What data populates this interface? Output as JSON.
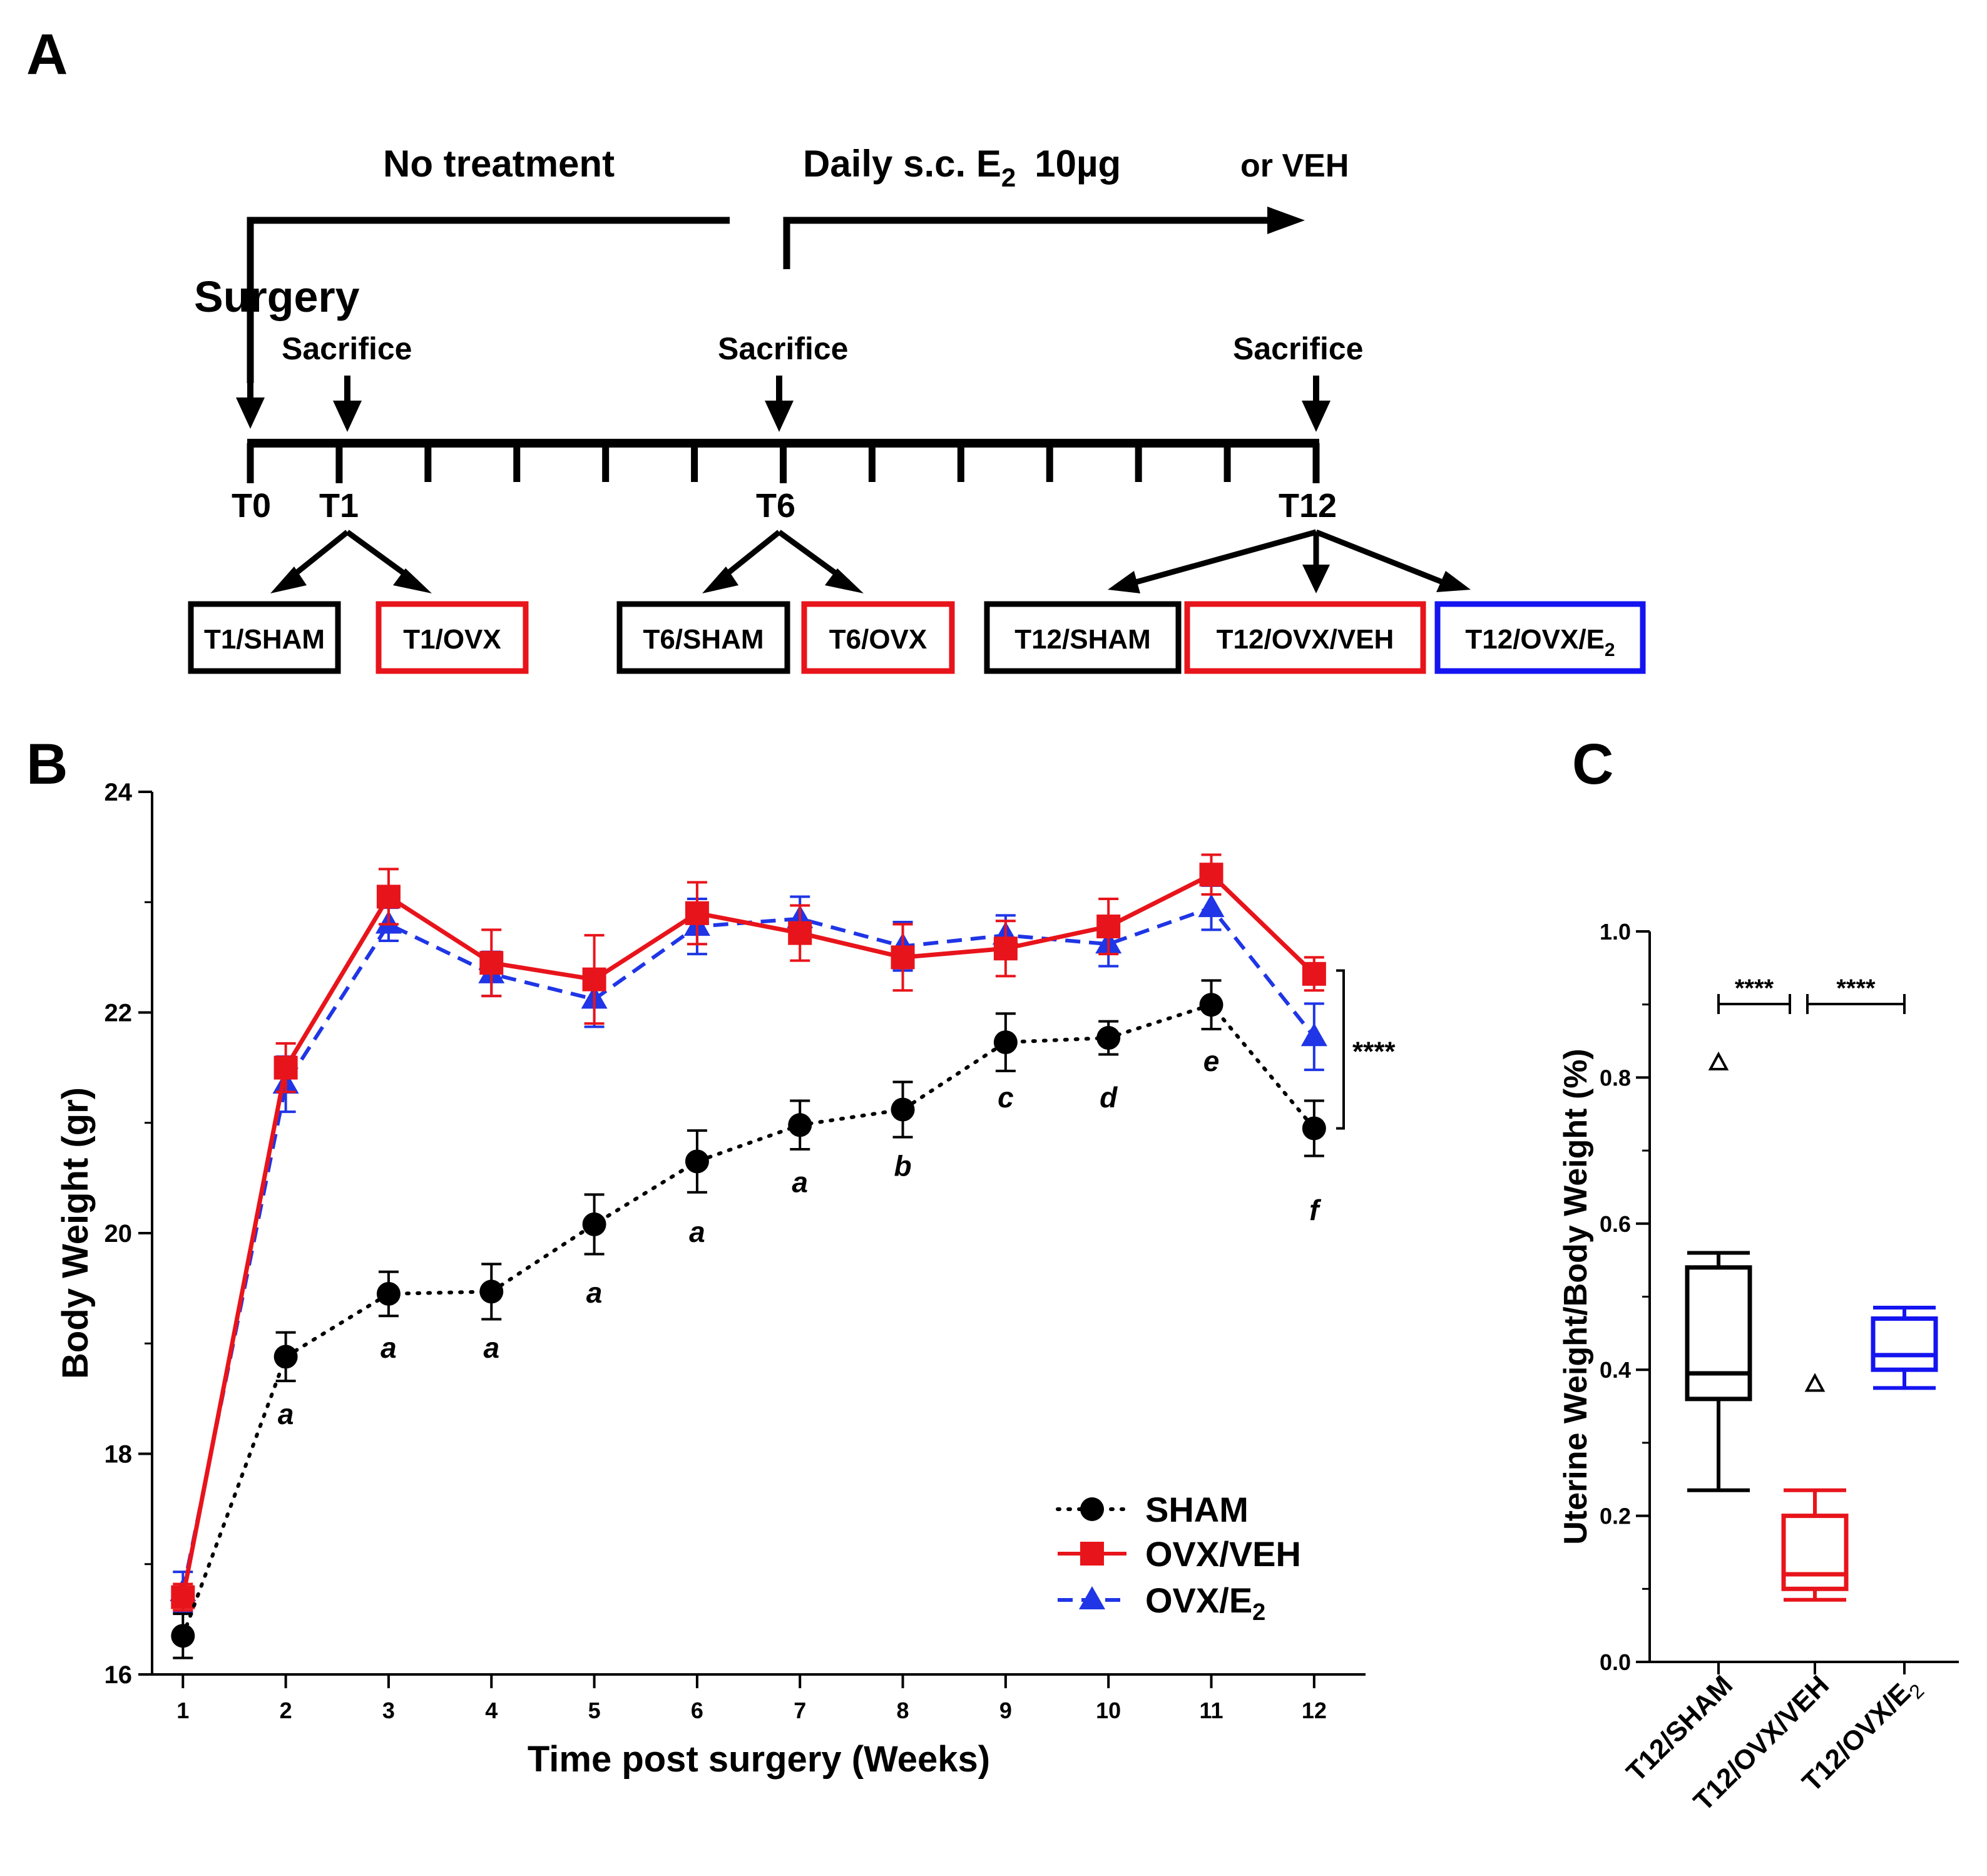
{
  "panels": {
    "a": {
      "letter": "A",
      "no_treatment": "No treatment",
      "daily_prefix": "Daily s.c. E",
      "daily_sub": "2",
      "daily_dose": "10µg",
      "or_veh": "or VEH",
      "surgery": "Surgery",
      "sacrifice": "Sacrifice",
      "timepoints": [
        "T0",
        "T1",
        "T6",
        "T12"
      ],
      "groups": [
        {
          "label": "T1/SHAM",
          "color": "#000000"
        },
        {
          "label": "T1/OVX",
          "color": "#e8141b"
        },
        {
          "label": "T6/SHAM",
          "color": "#000000"
        },
        {
          "label": "T6/OVX",
          "color": "#e8141b"
        },
        {
          "label": "T12/SHAM",
          "color": "#000000"
        },
        {
          "label": "T12/OVX/VEH",
          "color": "#e8141b"
        },
        {
          "label": "T12/OVX/E",
          "sub": "2",
          "color": "#1414f0"
        }
      ]
    },
    "b": {
      "letter": "B"
    },
    "c": {
      "letter": "C"
    }
  },
  "colors": {
    "sham": "#000000",
    "veh": "#e8141b",
    "e2": "#1f35e6"
  },
  "chart_data": [
    {
      "type": "line",
      "panel": "B",
      "xlabel": "Time post surgery (Weeks)",
      "ylabel": "Body Weight (gr)",
      "x": [
        1,
        2,
        3,
        4,
        5,
        6,
        7,
        8,
        9,
        10,
        11,
        12
      ],
      "xlim": [
        0.7,
        12.5
      ],
      "ylim": [
        16,
        24
      ],
      "yticks": [
        16,
        18,
        20,
        22,
        24
      ],
      "series": [
        {
          "name": "SHAM",
          "marker": "circle",
          "style": "dotted",
          "values": [
            16.35,
            18.88,
            19.45,
            19.47,
            20.08,
            20.65,
            20.98,
            21.12,
            21.73,
            21.77,
            22.07,
            20.95
          ],
          "err": [
            0.2,
            0.22,
            0.2,
            0.25,
            0.27,
            0.28,
            0.22,
            0.25,
            0.26,
            0.15,
            0.22,
            0.25
          ]
        },
        {
          "name": "OVX/VEH",
          "marker": "square",
          "style": "solid",
          "values": [
            16.7,
            21.5,
            23.05,
            22.45,
            22.3,
            22.9,
            22.72,
            22.5,
            22.58,
            22.78,
            23.25,
            22.35
          ],
          "err": [
            0.12,
            0.22,
            0.25,
            0.3,
            0.4,
            0.28,
            0.25,
            0.3,
            0.25,
            0.25,
            0.18,
            0.15
          ]
        },
        {
          "name": "OVX/E",
          "name_sub": "2",
          "marker": "triangle",
          "style": "dashed",
          "values": [
            16.75,
            21.35,
            22.8,
            22.35,
            22.12,
            22.78,
            22.85,
            22.6,
            22.7,
            22.62,
            22.95,
            21.78
          ],
          "err": [
            0.18,
            0.25,
            0.15,
            0.2,
            0.25,
            0.25,
            0.2,
            0.22,
            0.18,
            0.2,
            0.2,
            0.3
          ]
        }
      ],
      "annotations": {
        "letters": [
          {
            "x": 2,
            "text": "a",
            "y": 18.35
          },
          {
            "x": 3,
            "text": "a",
            "y": 18.95
          },
          {
            "x": 4,
            "text": "a",
            "y": 18.95
          },
          {
            "x": 5,
            "text": "a",
            "y": 19.45
          },
          {
            "x": 6,
            "text": "a",
            "y": 20.0
          },
          {
            "x": 7,
            "text": "a",
            "y": 20.45
          },
          {
            "x": 8,
            "text": "b",
            "y": 20.6
          },
          {
            "x": 9,
            "text": "c",
            "y": 21.22
          },
          {
            "x": 10,
            "text": "d",
            "y": 21.22
          },
          {
            "x": 11,
            "text": "e",
            "y": 21.55
          },
          {
            "x": 12,
            "text": "f",
            "y": 20.2
          }
        ],
        "significance": "****"
      }
    },
    {
      "type": "box",
      "panel": "C",
      "ylabel": "Uterine Weight/Body Weight (%)",
      "categories": [
        "T12/SHAM",
        "T12/OVX/VEH",
        "T12/OVX/E"
      ],
      "category_sub": [
        "",
        "",
        "2"
      ],
      "ylim": [
        0.0,
        1.0
      ],
      "yticks": [
        "0.0",
        "0.2",
        "0.4",
        "0.6",
        "0.8",
        "1.0"
      ],
      "boxes": [
        {
          "name": "T12/SHAM",
          "min": 0.235,
          "q1": 0.36,
          "median": 0.395,
          "q3": 0.54,
          "max": 0.56,
          "outlier": 0.82,
          "color": "#000000"
        },
        {
          "name": "T12/OVX/VEH",
          "min": 0.085,
          "q1": 0.1,
          "median": 0.12,
          "q3": 0.2,
          "max": 0.235,
          "outlier": 0.38,
          "color": "#e8141b"
        },
        {
          "name": "T12/OVX/E2",
          "min": 0.375,
          "q1": 0.4,
          "median": 0.42,
          "q3": 0.47,
          "max": 0.485,
          "outlier": null,
          "color": "#1414f0"
        }
      ],
      "significance": [
        "****",
        "****"
      ]
    }
  ]
}
